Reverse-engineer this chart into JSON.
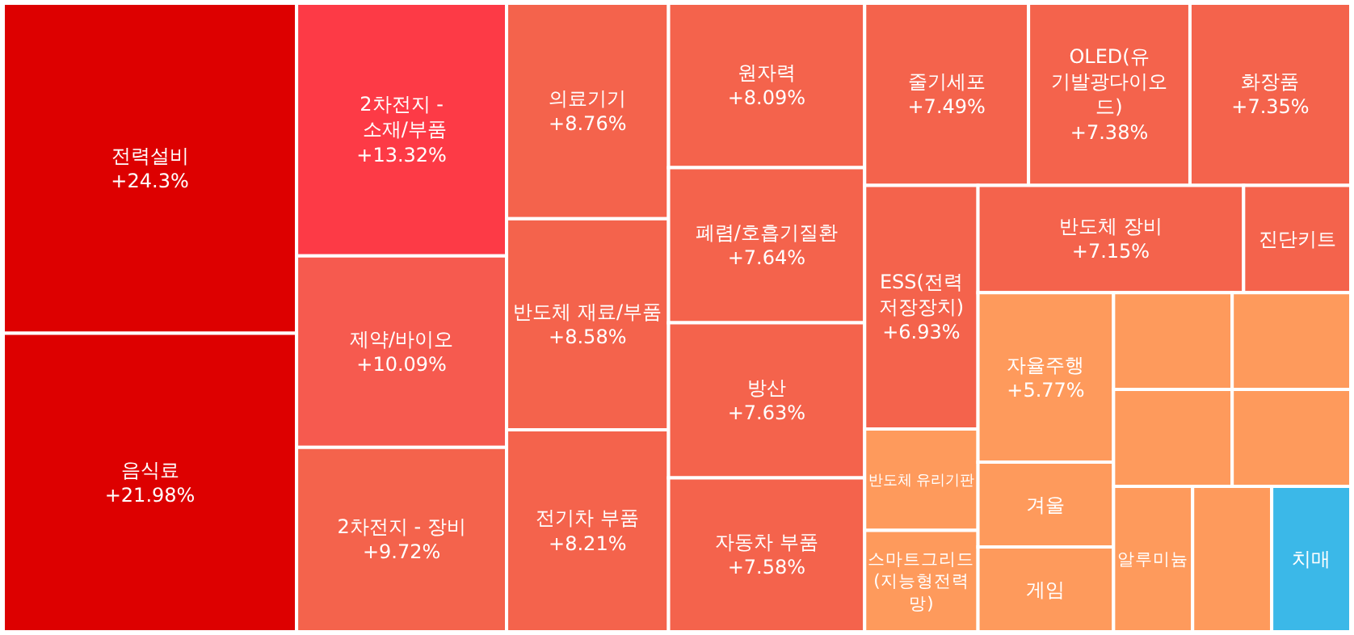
{
  "chart_data": {
    "type": "other",
    "categories": [
      "전력설비",
      "음식료",
      "2차전지 - 소재/부품",
      "제약/바이오",
      "2차전지 - 장비",
      "의료기기",
      "반도체 재료/부품",
      "전기차 부품",
      "원자력",
      "폐렴/호흡기질환",
      "방산",
      "자동차 부품",
      "줄기세포",
      "OLED(유기발광다이오드)",
      "화장품",
      "ESS(전력저장장치)",
      "반도체 유리기판",
      "스마트그리드(지능형전력망)",
      "반도체 장비",
      "진단키트",
      "자율주행",
      "겨울",
      "게임",
      null,
      null,
      null,
      null,
      "알루미늄",
      null,
      "치매"
    ],
    "values": [
      24.3,
      21.98,
      13.32,
      10.09,
      9.72,
      8.76,
      8.58,
      8.21,
      8.09,
      7.64,
      7.63,
      7.58,
      7.49,
      7.38,
      7.35,
      6.93,
      null,
      null,
      7.15,
      null,
      5.77,
      null,
      null,
      null,
      null,
      null,
      null,
      null,
      null,
      null
    ],
    "value_labels": [
      "+24.3%",
      "+21.98%",
      "+13.32%",
      "+10.09%",
      "+9.72%",
      "+8.76%",
      "+8.58%",
      "+8.21%",
      "+8.09%",
      "+7.64%",
      "+7.63%",
      "+7.58%",
      "+7.49%",
      "+7.38%",
      "+7.35%",
      "+6.93%",
      null,
      null,
      "+7.15%",
      null,
      "+5.77%",
      null,
      null,
      null,
      null,
      null,
      null,
      null,
      null,
      null
    ],
    "colors": [
      "#dd0000",
      "#dd0000",
      "#fd3a46",
      "#f65a4f",
      "#f4634c",
      "#f4634c",
      "#f4634c",
      "#f4634c",
      "#f4634c",
      "#f4634c",
      "#f4634c",
      "#f4634c",
      "#f4634c",
      "#f4634c",
      "#f4634c",
      "#f4634c",
      "#fe9a5c",
      "#fe9a5c",
      "#f4634c",
      "#f4634c",
      "#fe9a5c",
      "#fe9a5c",
      "#fe9a5c",
      "#fe9a5c",
      "#fe9a5c",
      "#fe9a5c",
      "#fe9a5c",
      "#fe9a5c",
      "#fe9a5c",
      "#3bb8e8"
    ]
  }
}
